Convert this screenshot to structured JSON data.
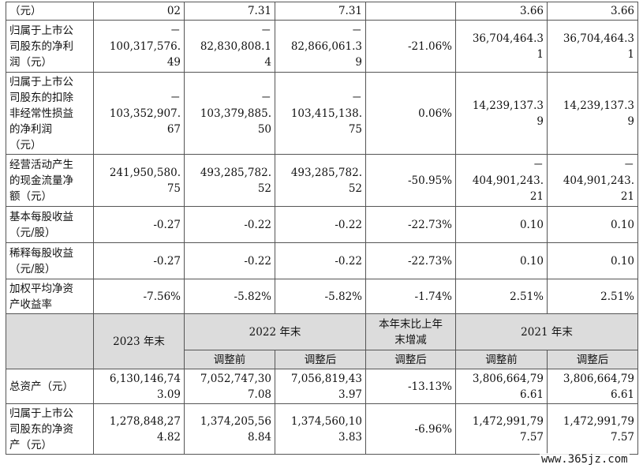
{
  "rows_top": [
    {
      "label": "（元）",
      "values": [
        "02",
        "7.31",
        "7.31",
        "",
        "3.66",
        "3.66"
      ]
    },
    {
      "label": "归属于上市公\n司股东的净利\n润（元）",
      "values": [
        "－\n100,317,576.\n49",
        "－\n82,830,808.1\n4",
        "－\n82,866,061.3\n9",
        "-21.06%",
        "36,704,464.3\n1",
        "36,704,464.3\n1"
      ]
    },
    {
      "label": "归属于上市公\n司股东的扣除\n非经常性损益\n的净利润\n（元）",
      "values": [
        "－\n103,352,907.\n67",
        "－\n103,379,885.\n50",
        "－\n103,415,138.\n75",
        "0.06%",
        "14,239,137.3\n9",
        "14,239,137.3\n9"
      ]
    },
    {
      "label": "经营活动产生\n的现金流量净\n额（元）",
      "values": [
        "241,950,580.\n75",
        "493,285,782.\n52",
        "493,285,782.\n52",
        "-50.95%",
        "－\n404,901,243.\n21",
        "－\n404,901,243.\n21"
      ]
    },
    {
      "label": "基本每股收益\n（元/股）",
      "values": [
        "-0.27",
        "-0.22",
        "-0.22",
        "-22.73%",
        "0.10",
        "0.10"
      ]
    },
    {
      "label": "稀释每股收益\n（元/股）",
      "values": [
        "-0.27",
        "-0.22",
        "-0.22",
        "-22.73%",
        "0.10",
        "0.10"
      ]
    },
    {
      "label": "加权平均净资\n产收益率",
      "values": [
        "-7.56%",
        "-5.82%",
        "-5.82%",
        "-1.74%",
        "2.51%",
        "2.51%"
      ]
    }
  ],
  "header": {
    "col_2023": "2023 年末",
    "col_2022": "2022 年末",
    "col_change": "本年末比上年\n末增减",
    "col_2021": "2021 年末",
    "sub_before": "调整前",
    "sub_after": "调整后"
  },
  "rows_bottom": [
    {
      "label": "总资产（元）",
      "values": [
        "6,130,146,74\n3.09",
        "7,052,747,30\n7.08",
        "7,056,819,43\n3.97",
        "-13.13%",
        "3,806,664,79\n6.61",
        "3,806,664,79\n6.61"
      ]
    },
    {
      "label": "归属于上市公\n司股东的净资\n产（元）",
      "values": [
        "1,278,848,27\n4.82",
        "1,374,205,56\n8.84",
        "1,374,560,10\n3.83",
        "-6.96%",
        "1,472,991,79\n7.57",
        "1,472,991,79\n7.57"
      ]
    }
  ],
  "watermark": "www.365jz.com"
}
